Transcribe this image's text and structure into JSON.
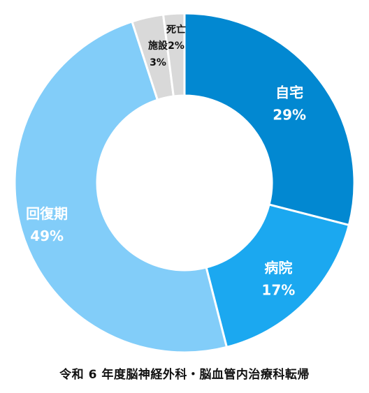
{
  "chart_data": {
    "type": "pie",
    "title": "令和 6 年度脳神経外科・脳血管内治療科転帰",
    "categories": [
      "自宅",
      "病院",
      "回復期",
      "施設",
      "死亡"
    ],
    "values": [
      29,
      17,
      49,
      3,
      2
    ],
    "value_labels": [
      "29%",
      "17%",
      "49%",
      "3%",
      "2%"
    ],
    "colors": [
      "#0288d1",
      "#1ba8f0",
      "#82cdf9",
      "#d9d9d9",
      "#d9d9d9"
    ],
    "donut": true,
    "legend": "none"
  }
}
